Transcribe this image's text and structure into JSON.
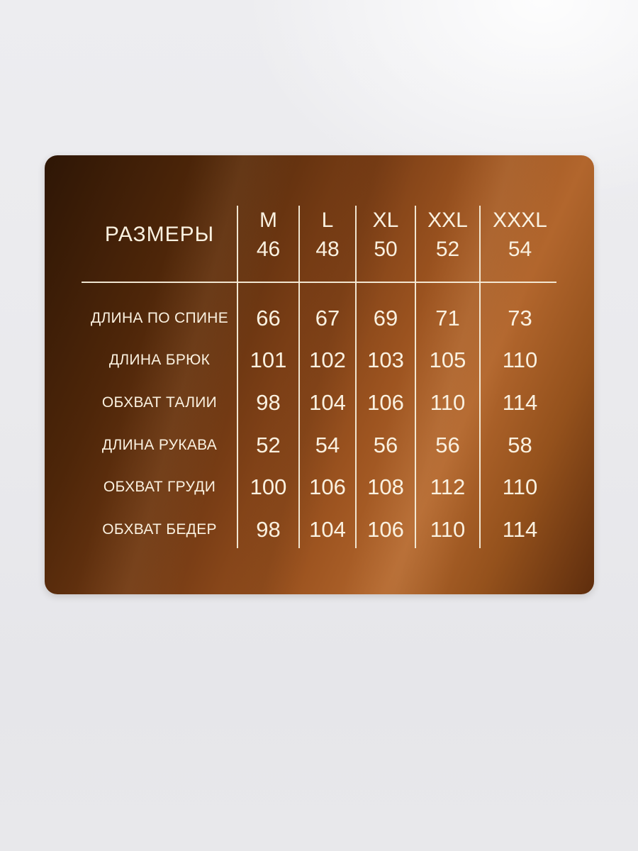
{
  "chart_data": {
    "type": "table",
    "title": "РАЗМЕРЫ",
    "columns": [
      {
        "size_label": "M",
        "size_number": "46"
      },
      {
        "size_label": "L",
        "size_number": "48"
      },
      {
        "size_label": "XL",
        "size_number": "50"
      },
      {
        "size_label": "XXL",
        "size_number": "52"
      },
      {
        "size_label": "XXXL",
        "size_number": "54"
      }
    ],
    "rows": [
      {
        "label": "ДЛИНА ПО СПИНЕ",
        "values": [
          66,
          67,
          69,
          71,
          73
        ]
      },
      {
        "label": "ДЛИНА БРЮК",
        "values": [
          101,
          102,
          103,
          105,
          110
        ]
      },
      {
        "label": "ОБХВАТ ТАЛИИ",
        "values": [
          98,
          104,
          106,
          110,
          114
        ]
      },
      {
        "label": "ДЛИНА РУКАВА",
        "values": [
          52,
          54,
          56,
          56,
          58
        ]
      },
      {
        "label": "ОБХВАТ ГРУДИ",
        "values": [
          100,
          106,
          108,
          112,
          110
        ]
      },
      {
        "label": "ОБХВАТ БЕДЕР",
        "values": [
          98,
          104,
          106,
          110,
          114
        ]
      }
    ],
    "layout": {
      "legend": "none",
      "grid": "cream rules between size columns and under header"
    }
  },
  "colors": {
    "copper_dark": "#2e1605",
    "copper_mid": "#9d5420",
    "copper_bright": "#b2662d",
    "text": "#faf1e0",
    "line": "#f6ecd9",
    "background_bottom": "#e6e6ea"
  }
}
